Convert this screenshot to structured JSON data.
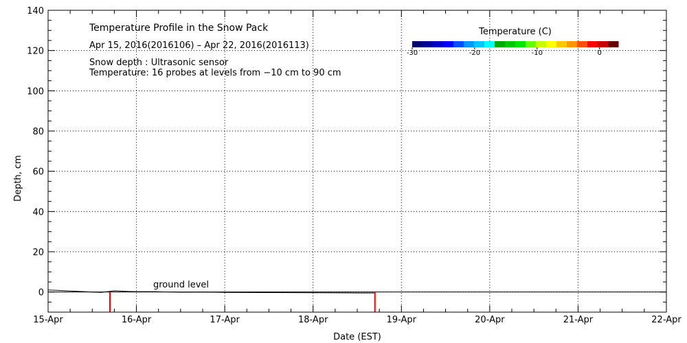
{
  "chart_data": {
    "type": "line",
    "title": "Temperature Profile in the Snow Pack",
    "subtitle": "Apr 15, 2016(2016106) – Apr 22, 2016(2016113)",
    "notes": [
      "Snow depth : Ultrasonic sensor",
      "Temperature: 16 probes at levels from −10 cm to 90 cm"
    ],
    "xlabel": "Date (EST)",
    "ylabel": "Depth, cm",
    "x_ticks": [
      "15-Apr",
      "16-Apr",
      "17-Apr",
      "18-Apr",
      "19-Apr",
      "20-Apr",
      "21-Apr",
      "22-Apr"
    ],
    "xlim": [
      0,
      7
    ],
    "y_ticks": [
      0,
      20,
      40,
      60,
      80,
      100,
      120,
      140
    ],
    "ylim": [
      -10,
      140
    ],
    "grid": true,
    "annotation": "ground level",
    "ground_level": 0,
    "series": [
      {
        "type": "line",
        "color": "#000000",
        "x": [
          0,
          0.1,
          0.2,
          0.35,
          0.5,
          0.6,
          0.75,
          0.9,
          1.0,
          1.2,
          1.5,
          1.8,
          2.0,
          2.5,
          3.0,
          3.5,
          3.7
        ],
        "y": [
          1.0,
          0.8,
          0.6,
          0.3,
          0.0,
          -0.2,
          0.6,
          0.3,
          0.2,
          0.2,
          -0.1,
          0.0,
          -0.2,
          -0.3,
          -0.4,
          -0.5,
          -0.5
        ]
      }
    ],
    "markers": [
      {
        "x": 0.7,
        "y_from": -10,
        "y_to": 0,
        "color": "#ff0000"
      },
      {
        "x": 3.7,
        "y_from": -10,
        "y_to": 0,
        "color": "#ff0000"
      }
    ],
    "colorbar": {
      "title": "Temperature (C)",
      "ticks": [
        "-30",
        "-20",
        "-10",
        "0"
      ],
      "range": [
        -30,
        3
      ],
      "colors": [
        "#00006e",
        "#000096",
        "#0000c8",
        "#0000ff",
        "#0050ff",
        "#0096ff",
        "#00c8ff",
        "#00ffff",
        "#00aa00",
        "#00c800",
        "#00e600",
        "#64ff00",
        "#c8ff00",
        "#ffff00",
        "#ffc800",
        "#ff9600",
        "#ff5000",
        "#ff0000",
        "#c80000",
        "#640000"
      ]
    }
  }
}
